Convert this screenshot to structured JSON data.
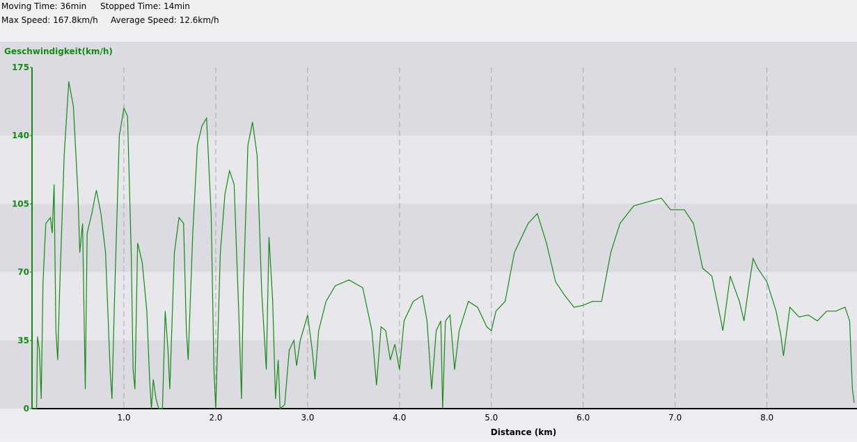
{
  "chart_data": {
    "type": "line",
    "annotations": [
      "Moving Time: 36min",
      "Stopped Time: 14min",
      "Max Speed: 167.8km/h",
      "Average Speed: 12.6km/h"
    ],
    "y_label": "Geschwindigkeit(km/h)",
    "x_label": "Distance (km)",
    "xlim": [
      0,
      8.95
    ],
    "ylim": [
      0,
      175
    ],
    "xticks": [
      {
        "value": 1,
        "label": "1.0"
      },
      {
        "value": 2,
        "label": "2.0"
      },
      {
        "value": 3,
        "label": "3.0"
      },
      {
        "value": 4,
        "label": "4.0"
      },
      {
        "value": 5,
        "label": "5.0"
      },
      {
        "value": 6,
        "label": "6.0"
      },
      {
        "value": 7,
        "label": "7.0"
      },
      {
        "value": 8,
        "label": "8.0"
      }
    ],
    "yticks": [
      0,
      35,
      70,
      105,
      140,
      175
    ],
    "grid": true,
    "x": [
      0,
      0.05,
      0.06,
      0.08,
      0.1,
      0.12,
      0.15,
      0.2,
      0.22,
      0.24,
      0.26,
      0.28,
      0.3,
      0.35,
      0.4,
      0.45,
      0.5,
      0.52,
      0.55,
      0.58,
      0.6,
      0.65,
      0.7,
      0.75,
      0.8,
      0.85,
      0.87,
      0.9,
      0.95,
      1.0,
      1.04,
      1.08,
      1.1,
      1.12,
      1.15,
      1.2,
      1.25,
      1.28,
      1.3,
      1.32,
      1.35,
      1.38,
      1.42,
      1.45,
      1.48,
      1.5,
      1.55,
      1.6,
      1.65,
      1.68,
      1.7,
      1.75,
      1.8,
      1.85,
      1.9,
      1.95,
      1.98,
      2.0,
      2.05,
      2.1,
      2.15,
      2.2,
      2.25,
      2.28,
      2.3,
      2.35,
      2.4,
      2.45,
      2.5,
      2.55,
      2.58,
      2.62,
      2.65,
      2.68,
      2.7,
      2.75,
      2.8,
      2.85,
      2.88,
      2.92,
      3.0,
      3.05,
      3.08,
      3.12,
      3.2,
      3.3,
      3.45,
      3.6,
      3.7,
      3.75,
      3.8,
      3.85,
      3.9,
      3.95,
      4.0,
      4.05,
      4.15,
      4.25,
      4.3,
      4.35,
      4.4,
      4.45,
      4.47,
      4.5,
      4.55,
      4.6,
      4.65,
      4.75,
      4.85,
      4.95,
      5.0,
      5.05,
      5.15,
      5.25,
      5.4,
      5.5,
      5.6,
      5.7,
      5.8,
      5.9,
      6.0,
      6.1,
      6.2,
      6.3,
      6.4,
      6.55,
      6.7,
      6.85,
      6.95,
      7.1,
      7.2,
      7.3,
      7.4,
      7.5,
      7.52,
      7.6,
      7.7,
      7.75,
      7.8,
      7.85,
      7.9,
      8.0,
      8.1,
      8.15,
      8.18,
      8.25,
      8.35,
      8.45,
      8.55,
      8.65,
      8.75,
      8.85,
      8.9,
      8.93,
      8.95
    ],
    "series": [
      {
        "color": "#138a13",
        "values": [
          0,
          0,
          37,
          30,
          5,
          65,
          95,
          98,
          90,
          115,
          40,
          25,
          60,
          130,
          167.8,
          155,
          110,
          80,
          95,
          10,
          90,
          100,
          112,
          100,
          80,
          20,
          5,
          60,
          140,
          154,
          150,
          80,
          20,
          10,
          85,
          75,
          50,
          15,
          0,
          15,
          5,
          0,
          0,
          50,
          30,
          10,
          80,
          98,
          95,
          40,
          25,
          90,
          135,
          145,
          149,
          100,
          20,
          0,
          80,
          110,
          122,
          115,
          50,
          5,
          60,
          135,
          147,
          130,
          60,
          20,
          88,
          55,
          5,
          25,
          0,
          2,
          30,
          35,
          22,
          35,
          48,
          30,
          15,
          40,
          55,
          63,
          66,
          62,
          40,
          12,
          42,
          40,
          25,
          33,
          20,
          45,
          55,
          58,
          45,
          10,
          40,
          45,
          0,
          45,
          48,
          20,
          40,
          55,
          52,
          42,
          40,
          50,
          55,
          80,
          95,
          100,
          85,
          65,
          58,
          52,
          53,
          55,
          55,
          80,
          95,
          104,
          106,
          108,
          102,
          102,
          95,
          72,
          68,
          45,
          40,
          68,
          55,
          45,
          62,
          77,
          72,
          65,
          50,
          38,
          27,
          52,
          47,
          48,
          45,
          50,
          50,
          52,
          45,
          10,
          3
        ]
      }
    ]
  }
}
